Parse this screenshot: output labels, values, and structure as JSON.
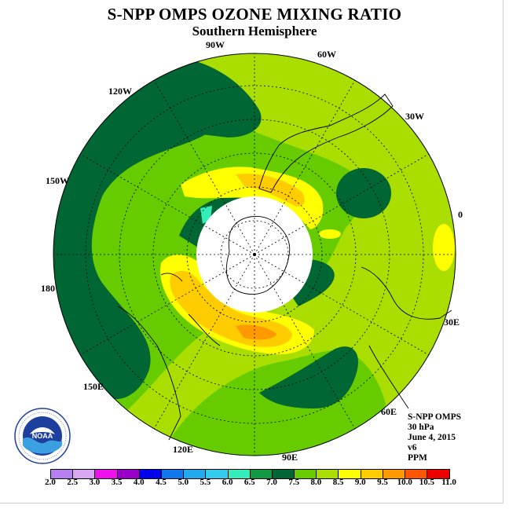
{
  "title": "S-NPP OMPS OZONE MIXING RATIO",
  "subtitle": "Southern Hemisphere",
  "longitude_labels": [
    "90W",
    "60W",
    "30W",
    "0",
    "30E",
    "60E",
    "90E",
    "120E",
    "150E",
    "180",
    "150W",
    "120W"
  ],
  "info": {
    "line1": "S-NPP OMPS",
    "line2": "30 hPa",
    "line3": "June 4, 2015",
    "line4": "v6",
    "line5": "PPM"
  },
  "logo": {
    "text": "NOAA",
    "ring_text": "NATIONAL OCEANIC AND ATMOSPHERIC ADMINISTRATION · U.S. DEPARTMENT OF COMMERCE"
  },
  "colorbar": {
    "ticks": [
      "2.0",
      "2.5",
      "3.0",
      "3.5",
      "4.0",
      "4.5",
      "5.0",
      "5.5",
      "6.0",
      "6.5",
      "7.0",
      "7.5",
      "8.0",
      "8.5",
      "9.0",
      "9.5",
      "10.0",
      "10.5",
      "11.0"
    ],
    "colors": [
      "#b77fef",
      "#d8a6f2",
      "#ee11ee",
      "#9900cc",
      "#0000ee",
      "#1177ee",
      "#22aaee",
      "#33ccee",
      "#33eebb",
      "#119944",
      "#006633",
      "#66cc00",
      "#aadd00",
      "#ffff00",
      "#ffcc00",
      "#ff9900",
      "#ff5500",
      "#ee0000",
      "#8b5a2b"
    ]
  },
  "map_colors": {
    "ring_high": "#006633",
    "mid_green": "#66cc00",
    "yellow_green": "#aadd00",
    "yellow": "#ffff00",
    "orange": "#ffcc00",
    "dark_orange": "#ff9900",
    "cyan": "#33eebb",
    "missing": "#ffffff"
  }
}
